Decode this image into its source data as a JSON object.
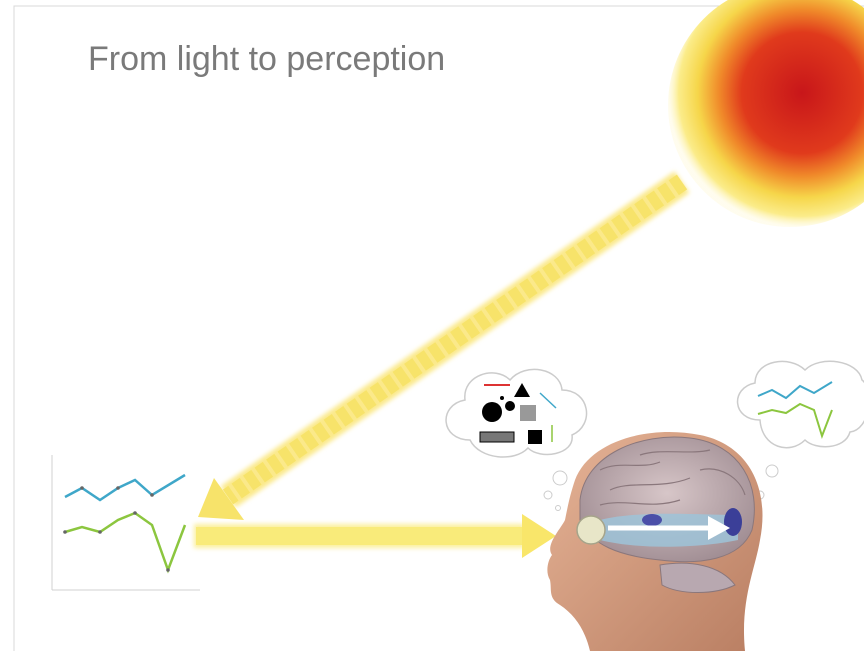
{
  "header": {
    "title": "From light to perception"
  }
}
